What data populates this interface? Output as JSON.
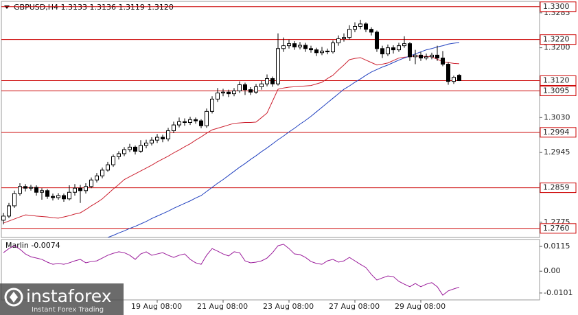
{
  "chart_data": [
    {
      "type": "candlestick",
      "title": "GBPUSD,H4  1.3133 1.3136 1.3119 1.3120",
      "categories": [
        null,
        null,
        null,
        null,
        null,
        null,
        null,
        null,
        null,
        null,
        null,
        null,
        null,
        null,
        null,
        null,
        null,
        null,
        null,
        null,
        null,
        null,
        null,
        null,
        null,
        null,
        null,
        null,
        "19 Aug 08:00",
        null,
        null,
        null,
        null,
        null,
        null,
        null,
        null,
        null,
        null,
        null,
        "21 Aug 08:00",
        null,
        null,
        null,
        null,
        null,
        null,
        null,
        null,
        null,
        null,
        null,
        "23 Aug 08:00",
        null,
        null,
        null,
        null,
        null,
        null,
        null,
        null,
        null,
        null,
        null,
        "27 Aug 08:00",
        null,
        null,
        null,
        null,
        null,
        null,
        null,
        null,
        null,
        null,
        null,
        "29 Aug 08:00",
        null,
        null,
        null,
        null,
        null,
        null,
        null
      ],
      "open": [
        1.278,
        1.279,
        1.2815,
        1.2845,
        1.2862,
        1.2858,
        1.286,
        1.2848,
        1.2852,
        1.2838,
        1.2835,
        1.284,
        1.2832,
        1.2848,
        1.2858,
        1.2852,
        1.2862,
        1.2878,
        1.2888,
        1.2902,
        1.2915,
        1.2935,
        1.2942,
        1.2952,
        1.2958,
        1.2948,
        1.2962,
        1.2968,
        1.2975,
        1.2982,
        1.2978,
        1.2998,
        1.3012,
        1.302,
        1.3018,
        1.3025,
        1.3022,
        1.301,
        1.3045,
        1.3075,
        1.309,
        1.3092,
        1.3088,
        1.3095,
        1.311,
        1.3098,
        1.3092,
        1.3105,
        1.3112,
        1.3125,
        1.3112,
        1.3198,
        1.3205,
        1.321,
        1.3202,
        1.3206,
        1.3198,
        1.3195,
        1.3188,
        1.3192,
        1.319,
        1.3212,
        1.3222,
        1.3225,
        1.3245,
        1.3252,
        1.3258,
        1.3245,
        1.3238,
        1.3198,
        1.3185,
        1.32,
        1.3195,
        1.3205,
        1.321,
        1.3178,
        1.3182,
        1.3175,
        1.3178,
        1.3182,
        1.3175,
        1.316,
        1.3118,
        1.3133
      ],
      "high": [
        1.2798,
        1.2822,
        1.2852,
        1.287,
        1.2868,
        1.2866,
        1.2865,
        1.2858,
        1.2856,
        1.2845,
        1.2846,
        1.2845,
        1.2865,
        1.2868,
        1.2866,
        1.287,
        1.2884,
        1.2895,
        1.2908,
        1.2922,
        1.294,
        1.2948,
        1.2958,
        1.2966,
        1.2962,
        1.2975,
        1.2976,
        1.2982,
        1.299,
        1.2988,
        1.3005,
        1.302,
        1.303,
        1.3028,
        1.3032,
        1.303,
        1.3026,
        1.3052,
        1.3082,
        1.3102,
        1.31,
        1.3098,
        1.3102,
        1.3118,
        1.3115,
        1.3104,
        1.3112,
        1.312,
        1.3135,
        1.313,
        1.3235,
        1.3225,
        1.322,
        1.3216,
        1.3214,
        1.3212,
        1.3205,
        1.32,
        1.3202,
        1.3198,
        1.3218,
        1.323,
        1.3235,
        1.3255,
        1.3262,
        1.3268,
        1.3262,
        1.325,
        1.3242,
        1.3205,
        1.3208,
        1.3206,
        1.3212,
        1.3228,
        1.3214,
        1.3195,
        1.319,
        1.3186,
        1.3188,
        1.3205,
        1.3192,
        1.3165,
        1.3132,
        1.3136
      ],
      "low": [
        1.277,
        1.2785,
        1.281,
        1.284,
        1.285,
        1.2852,
        1.284,
        1.283,
        1.2832,
        1.2828,
        1.283,
        1.2825,
        1.2828,
        1.284,
        1.2822,
        1.2845,
        1.2858,
        1.2872,
        1.2882,
        1.2898,
        1.291,
        1.2928,
        1.2936,
        1.2946,
        1.294,
        1.2944,
        1.2955,
        1.2962,
        1.2968,
        1.297,
        1.2972,
        1.2992,
        1.3006,
        1.301,
        1.3012,
        1.3015,
        1.3004,
        1.3005,
        1.304,
        1.3068,
        1.3082,
        1.308,
        1.3082,
        1.309,
        1.3085,
        1.3085,
        1.3088,
        1.3098,
        1.3106,
        1.3105,
        1.3108,
        1.319,
        1.3198,
        1.3195,
        1.3196,
        1.319,
        1.3188,
        1.318,
        1.3182,
        1.3184,
        1.3186,
        1.3205,
        1.3215,
        1.322,
        1.3238,
        1.3245,
        1.3238,
        1.323,
        1.319,
        1.3175,
        1.318,
        1.3186,
        1.319,
        1.32,
        1.3168,
        1.316,
        1.3168,
        1.317,
        1.3172,
        1.3168,
        1.3155,
        1.311,
        1.3112,
        1.3119
      ],
      "close": [
        1.279,
        1.2815,
        1.2845,
        1.2862,
        1.2858,
        1.286,
        1.2848,
        1.2852,
        1.2838,
        1.2835,
        1.284,
        1.2832,
        1.2848,
        1.2858,
        1.2852,
        1.2862,
        1.2878,
        1.2888,
        1.2902,
        1.2915,
        1.2935,
        1.2942,
        1.2952,
        1.2958,
        1.2948,
        1.2962,
        1.2968,
        1.2975,
        1.2982,
        1.2978,
        1.2998,
        1.3012,
        1.302,
        1.3018,
        1.3025,
        1.3022,
        1.301,
        1.3045,
        1.3075,
        1.309,
        1.3092,
        1.3088,
        1.3095,
        1.311,
        1.3098,
        1.3092,
        1.3105,
        1.3112,
        1.3125,
        1.3112,
        1.3198,
        1.3205,
        1.321,
        1.3202,
        1.3206,
        1.3198,
        1.3195,
        1.3188,
        1.3192,
        1.319,
        1.3212,
        1.3222,
        1.3225,
        1.3245,
        1.3252,
        1.3258,
        1.3245,
        1.3238,
        1.3198,
        1.3185,
        1.32,
        1.3195,
        1.3205,
        1.321,
        1.3178,
        1.3182,
        1.3175,
        1.3178,
        1.3182,
        1.3175,
        1.316,
        1.3118,
        1.3128,
        1.312
      ],
      "up_color": "#ffffff",
      "down_color": "#000000",
      "wick_color": "#000000",
      "lines": [
        {
          "color": "#cc1f2e",
          "values": [
            1.2773,
            1.2778,
            1.2783,
            1.2788,
            1.2793,
            1.2792,
            1.279,
            1.2789,
            1.2788,
            1.2786,
            1.2785,
            1.2788,
            1.2791,
            1.2795,
            1.2798,
            1.2806,
            1.2815,
            1.2823,
            1.2832,
            1.2844,
            1.2856,
            1.2867,
            1.2879,
            1.2886,
            1.2893,
            1.29,
            1.2907,
            1.2914,
            1.2922,
            1.2929,
            1.2936,
            1.2944,
            1.2951,
            1.2959,
            1.2966,
            1.2975,
            1.2983,
            1.2992,
            1.3,
            1.3004,
            1.3008,
            1.3012,
            1.3016,
            1.3017,
            1.3018,
            1.3018,
            1.3019,
            1.303,
            1.3041,
            1.307,
            1.3099,
            1.3102,
            1.3104,
            1.3105,
            1.3106,
            1.3107,
            1.3108,
            1.3112,
            1.3116,
            1.3125,
            1.3133,
            1.3146,
            1.3158,
            1.3171,
            1.3174,
            1.3176,
            1.317,
            1.3164,
            1.3158,
            1.316,
            1.3163,
            1.3169,
            1.3175,
            1.3177,
            1.3178,
            1.318,
            1.3179,
            1.3179,
            1.3178,
            1.3172,
            1.3166,
            1.3164,
            1.3162,
            1.3161
          ]
        },
        {
          "color": "#1f3fbf",
          "values": [
            null,
            null,
            null,
            null,
            null,
            null,
            null,
            null,
            null,
            null,
            null,
            null,
            null,
            null,
            null,
            null,
            null,
            null,
            null,
            1.2738,
            1.2743,
            1.2749,
            1.2754,
            1.276,
            1.2765,
            1.2771,
            1.2777,
            1.2784,
            1.279,
            1.2796,
            1.2802,
            1.2809,
            1.2815,
            1.2821,
            1.2827,
            1.2834,
            1.284,
            1.285,
            1.286,
            1.287,
            1.2879,
            1.2889,
            1.2899,
            1.2909,
            1.2918,
            1.2928,
            1.2937,
            1.2947,
            1.2956,
            1.2966,
            1.2976,
            1.2985,
            1.2995,
            1.3004,
            1.3014,
            1.3023,
            1.3033,
            1.3044,
            1.3055,
            1.3066,
            1.3077,
            1.3088,
            1.3099,
            1.3107,
            1.3116,
            1.3124,
            1.3133,
            1.3141,
            1.3147,
            1.3153,
            1.3158,
            1.3164,
            1.317,
            1.3175,
            1.318,
            1.3185,
            1.319,
            1.3195,
            1.3198,
            1.3202,
            1.3205,
            1.3209,
            1.3211,
            1.3213
          ]
        }
      ],
      "levels": [
        {
          "value": 1.33,
          "label": "1.3300"
        },
        {
          "value": 1.322,
          "label": "1.3220"
        },
        {
          "value": 1.312,
          "label": "1.3120"
        },
        1.3095,
        1.2994,
        1.2859,
        {
          "value": 1.276,
          "label": "1.2760"
        }
      ],
      "level_color": "#cc0000",
      "ylim": [
        1.2738,
        1.3313
      ],
      "yticks": [
        1.3285,
        {
          "value": 1.32,
          "label": "1.3200"
        },
        {
          "value": 1.303,
          "label": "1.3030"
        },
        1.2945,
        1.2775
      ],
      "grid": false
    },
    {
      "type": "line",
      "title": "Marlin -0.0074",
      "color": "#9a1a9a",
      "values": [
        0.0086,
        0.0105,
        0.0118,
        0.0102,
        0.008,
        0.0067,
        0.0061,
        0.0055,
        0.0042,
        0.0032,
        0.0036,
        0.0032,
        0.0039,
        0.0048,
        0.0055,
        0.0039,
        0.0045,
        0.0048,
        0.0061,
        0.0074,
        0.0083,
        0.009,
        0.0086,
        0.0074,
        0.0055,
        0.008,
        0.009,
        0.0074,
        0.008,
        0.0086,
        0.0074,
        0.0064,
        0.0074,
        0.008,
        0.0055,
        0.0039,
        0.0032,
        0.0074,
        0.0105,
        0.0093,
        0.008,
        0.0071,
        0.009,
        0.0086,
        0.0048,
        0.0039,
        0.0042,
        0.0048,
        0.0061,
        0.0086,
        0.0118,
        0.0125,
        0.0105,
        0.008,
        0.0077,
        0.0064,
        0.0045,
        0.0036,
        0.0032,
        0.0048,
        0.0055,
        0.0042,
        0.0048,
        0.0064,
        0.0048,
        0.0032,
        0.0017,
        -0.0015,
        -0.0041,
        -0.0031,
        -0.0022,
        -0.0025,
        -0.0047,
        -0.006,
        -0.0072,
        -0.0057,
        -0.0072,
        -0.006,
        -0.0053,
        -0.0072,
        -0.0111,
        -0.0091,
        -0.0082,
        -0.0074
      ],
      "ylim": [
        -0.0133,
        0.0147
      ],
      "yticks": [
        0.0115,
        {
          "value": 0,
          "label": "0.00"
        },
        -0.0101
      ],
      "grid": false
    }
  ],
  "branding": {
    "name": "instaforex",
    "tagline": "Instant Forex Trading"
  }
}
